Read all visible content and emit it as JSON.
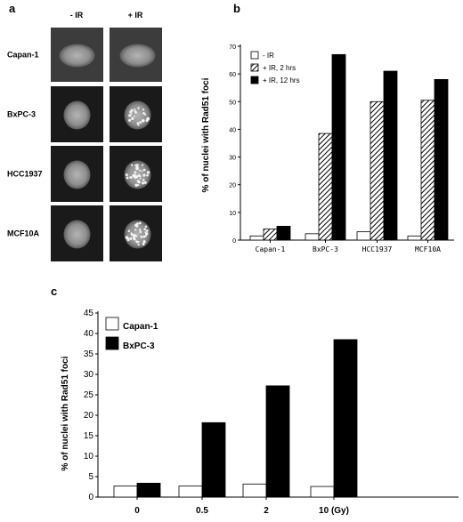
{
  "panel_a": {
    "letter": "a",
    "col_headers": [
      "- IR",
      "+ IR"
    ],
    "row_labels": [
      "Capan-1",
      "BxPC-3",
      "HCC1937",
      "MCF10A"
    ],
    "foci": [
      false,
      true,
      true,
      true
    ]
  },
  "panel_b": {
    "letter": "b",
    "chart_data": {
      "type": "bar",
      "ylabel": "% of nuclei with Rad51 foci",
      "ylim": [
        0,
        70
      ],
      "yticks": [
        0,
        10,
        20,
        30,
        40,
        50,
        60,
        70
      ],
      "categories": [
        "Capan-1",
        "BxPC-3",
        "HCC1937",
        "MCF10A"
      ],
      "legend_position": "top-left",
      "series": [
        {
          "name": "- IR",
          "values": [
            1.5,
            2.3,
            3.0,
            1.5
          ],
          "fill": "white"
        },
        {
          "name": "+ IR, 2 hrs",
          "values": [
            4.0,
            38.5,
            50.0,
            50.5
          ],
          "fill": "hatch"
        },
        {
          "name": "+ IR, 12 hrs",
          "values": [
            5.0,
            67.0,
            61.0,
            58.0
          ],
          "fill": "black"
        }
      ]
    }
  },
  "panel_c": {
    "letter": "c",
    "chart_data": {
      "type": "bar",
      "ylabel": "% of nuclei with Rad51 foci",
      "ylim": [
        0,
        45
      ],
      "yticks": [
        0,
        5,
        10,
        15,
        20,
        25,
        30,
        35,
        40,
        45
      ],
      "categories": [
        "0",
        "0.5",
        "2",
        "10 (Gy)"
      ],
      "legend_position": "top-left",
      "series": [
        {
          "name": "Capan-1",
          "values": [
            2.7,
            2.7,
            3.2,
            2.6
          ],
          "fill": "white"
        },
        {
          "name": "BxPC-3",
          "values": [
            3.4,
            18.2,
            27.2,
            38.5
          ],
          "fill": "black"
        }
      ]
    }
  }
}
